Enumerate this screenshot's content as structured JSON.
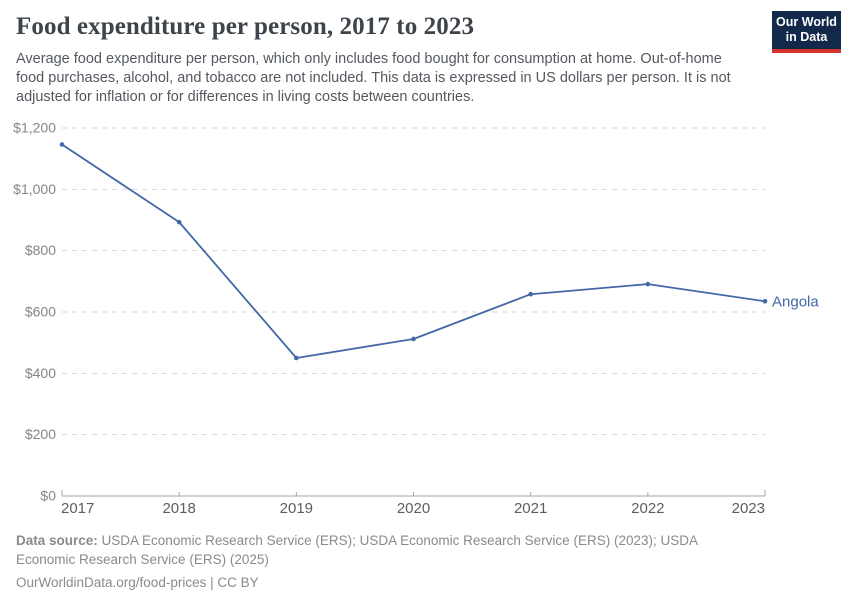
{
  "header": {
    "title": "Food expenditure per person, 2017 to 2023",
    "subtitle": "Average food expenditure per person, which only includes food bought for consumption at home. Out-of-home food purchases, alcohol, and tobacco are not included. This data is expressed in US dollars per person. It is not adjusted for inflation or for differences in living costs between countries.",
    "logo": {
      "line1": "Our World",
      "line2": "in Data"
    }
  },
  "chart_data": {
    "type": "line",
    "title": "Food expenditure per person, 2017 to 2023",
    "categories": [
      "2017",
      "2018",
      "2019",
      "2020",
      "2021",
      "2022",
      "2023"
    ],
    "series": [
      {
        "name": "Angola",
        "values": [
          1146,
          893,
          450,
          512,
          658,
          691,
          635
        ],
        "color": "#4468a6"
      }
    ],
    "xlabel": "",
    "ylabel": "US dollars per person",
    "ylim": [
      0,
      1200
    ],
    "yticks": [
      {
        "value": 0,
        "label": "$0"
      },
      {
        "value": 200,
        "label": "$200"
      },
      {
        "value": 400,
        "label": "$400"
      },
      {
        "value": 600,
        "label": "$600"
      },
      {
        "value": 800,
        "label": "$800"
      },
      {
        "value": 1000,
        "label": "$1,000"
      },
      {
        "value": 1200,
        "label": "$1,200"
      }
    ],
    "grid": "horizontal-dashed",
    "legend_position": "end-of-line-label"
  },
  "theme": {
    "grid_color": "#d7d7d7",
    "axis_color": "#a6a6a6",
    "ytick_label_color": "#868686",
    "xtick_label_color": "#5d5d5d",
    "logo_bg": "#12294b",
    "logo_stripe": "#d0342c"
  },
  "footer": {
    "source_label": "Data source:",
    "source_text": " USDA Economic Research Service (ERS); USDA Economic Research Service (ERS) (2023); USDA Economic Research Service (ERS) (2025)",
    "url": "OurWorldinData.org/food-prices",
    "separator": " | ",
    "license": "CC BY"
  }
}
